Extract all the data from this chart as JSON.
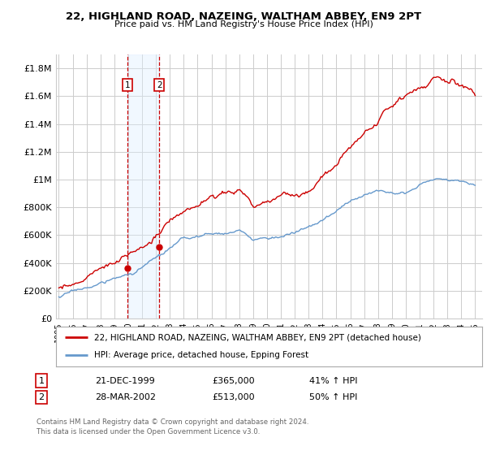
{
  "title": "22, HIGHLAND ROAD, NAZEING, WALTHAM ABBEY, EN9 2PT",
  "subtitle": "Price paid vs. HM Land Registry's House Price Index (HPI)",
  "ylabel_ticks": [
    "£0",
    "£200K",
    "£400K",
    "£600K",
    "£800K",
    "£1M",
    "£1.2M",
    "£1.4M",
    "£1.6M",
    "£1.8M"
  ],
  "ytick_values": [
    0,
    200000,
    400000,
    600000,
    800000,
    1000000,
    1200000,
    1400000,
    1600000,
    1800000
  ],
  "ylim": [
    0,
    1900000
  ],
  "xlim_start": 1994.8,
  "xlim_end": 2025.5,
  "sale1": {
    "date_num": 1999.97,
    "price": 365000,
    "label": "1",
    "date_str": "21-DEC-1999",
    "price_str": "£365,000",
    "hpi_pct": "41% ↑ HPI"
  },
  "sale2": {
    "date_num": 2002.24,
    "price": 513000,
    "label": "2",
    "date_str": "28-MAR-2002",
    "price_str": "£513,000",
    "hpi_pct": "50% ↑ HPI"
  },
  "legend_line1": "22, HIGHLAND ROAD, NAZEING, WALTHAM ABBEY, EN9 2PT (detached house)",
  "legend_line2": "HPI: Average price, detached house, Epping Forest",
  "footer1": "Contains HM Land Registry data © Crown copyright and database right 2024.",
  "footer2": "This data is licensed under the Open Government Licence v3.0.",
  "line_color_red": "#cc0000",
  "line_color_blue": "#6699cc",
  "shade_color": "#ddeeff",
  "background_color": "#ffffff",
  "grid_color": "#cccccc"
}
